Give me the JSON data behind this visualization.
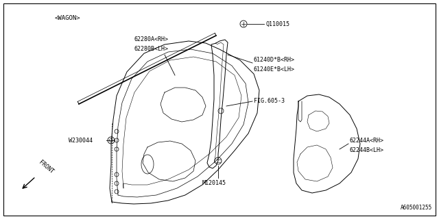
{
  "bg_color": "#ffffff",
  "border_color": "#000000",
  "line_color": "#000000",
  "text_color": "#000000",
  "title_bottom": "A605001255",
  "wagon_label": "<WAGON>",
  "front_label": "FRONT"
}
